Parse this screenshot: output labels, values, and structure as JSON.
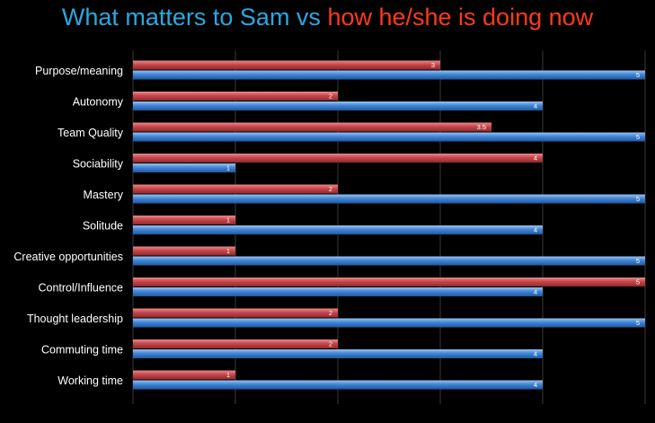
{
  "title": {
    "part1": "What matters to Sam vs ",
    "part2": "how he/she is doing now",
    "part1_color": "#29a8e0",
    "part2_color": "#ff3a1a"
  },
  "colors": {
    "now": "#c8464a",
    "matters": "#3f86d8",
    "label_text": "#ffffff",
    "value_text": "#ffffff",
    "grid": "#3a3a3a",
    "background": "#000000"
  },
  "chart_data": {
    "type": "bar",
    "orientation": "horizontal",
    "xlim": [
      0,
      5
    ],
    "grid": true,
    "categories": [
      "Purpose/meaning",
      "Autonomy",
      "Team Quality",
      "Sociability",
      "Mastery",
      "Solitude",
      "Creative opportunities",
      "Control/Influence",
      "Thought leadership",
      "Commuting time",
      "Working time"
    ],
    "series": [
      {
        "key": "now",
        "values": [
          3,
          2,
          3.5,
          4,
          2,
          1,
          1,
          5,
          2,
          2,
          1
        ],
        "labels": [
          "3",
          "2",
          "3.5",
          "4",
          "2",
          "1",
          "1",
          "5",
          "2",
          "2",
          "1"
        ]
      },
      {
        "key": "matters",
        "values": [
          5,
          4,
          5,
          1,
          5,
          4,
          5,
          4,
          5,
          4,
          4
        ],
        "labels": [
          "5",
          "4",
          "5",
          "1",
          "5",
          "4",
          "5",
          "4",
          "5",
          "4",
          "4"
        ]
      }
    ]
  }
}
